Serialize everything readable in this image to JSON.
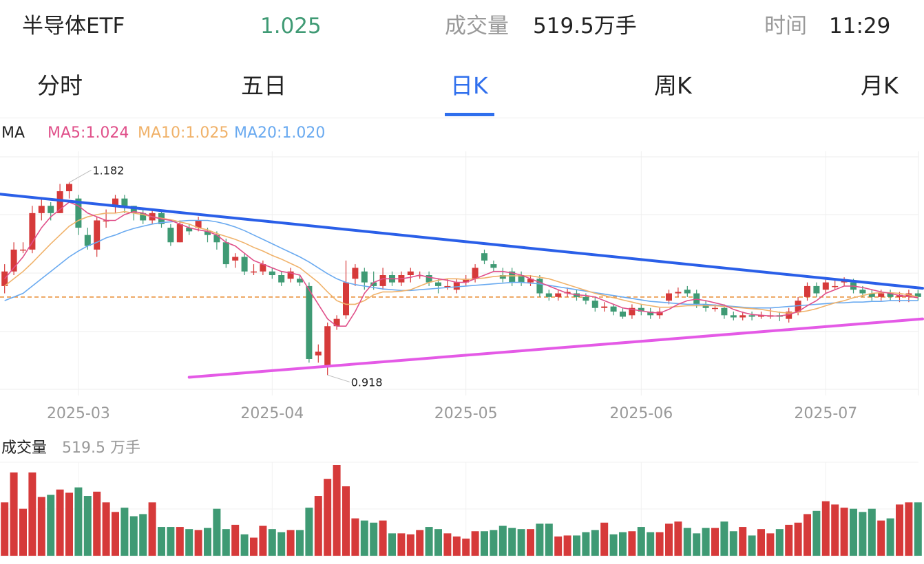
{
  "header": {
    "name": "半导体ETF",
    "price": "1.025",
    "volume_label": "成交量",
    "volume_value": "519.5万手",
    "time_label": "时间",
    "time_value": "11:29"
  },
  "tabs": [
    {
      "label": "分时",
      "active": false
    },
    {
      "label": "五日",
      "active": false
    },
    {
      "label": "日K",
      "active": true
    },
    {
      "label": "周K",
      "active": false
    },
    {
      "label": "月K",
      "active": false
    }
  ],
  "ma_legend": {
    "label": "MA",
    "ma5": "MA5:1.024",
    "ma10": "MA10:1.025",
    "ma20": "MA20:1.020"
  },
  "volume_legend": {
    "label": "成交量",
    "value": "519.5 万手"
  },
  "colors": {
    "up": "#d63a3a",
    "down": "#3f9a74",
    "ma5": "#e0508a",
    "ma10": "#f0b26a",
    "ma20": "#6aaaf0",
    "resistance_line": "#2a5fe8",
    "support_line": "#e45ae6",
    "price_ref_line": "#e8872a",
    "accent": "#2f6fed"
  },
  "chart_data": {
    "type": "candlestick",
    "x_tick_labels": [
      "2025-03",
      "2025-04",
      "2025-05",
      "2025-06",
      "2025-07"
    ],
    "x_tick_index": [
      8,
      29,
      50,
      69,
      89
    ],
    "y_range": [
      0.89,
      1.22
    ],
    "price_reference": 1.025,
    "annotations": [
      {
        "text": "1.182",
        "index": 7,
        "value": 1.182
      },
      {
        "text": "0.918",
        "index": 35,
        "value": 0.918
      }
    ],
    "trendlines": [
      {
        "name": "resistance",
        "from": [
          -0.5,
          1.166
        ],
        "to": [
          99.5,
          1.037
        ]
      },
      {
        "name": "support",
        "from": [
          20,
          0.915
        ],
        "to": [
          99.5,
          0.995
        ]
      }
    ],
    "candles": [
      [
        1.04,
        1.06,
        1.07,
        1.03
      ],
      [
        1.06,
        1.09,
        1.1,
        1.055
      ],
      [
        1.09,
        1.09,
        1.1,
        1.085
      ],
      [
        1.09,
        1.14,
        1.15,
        1.085
      ],
      [
        1.14,
        1.15,
        1.16,
        1.13
      ],
      [
        1.15,
        1.14,
        1.155,
        1.13
      ],
      [
        1.14,
        1.17,
        1.18,
        1.14
      ],
      [
        1.17,
        1.18,
        1.182,
        1.16
      ],
      [
        1.16,
        1.12,
        1.165,
        1.11
      ],
      [
        1.11,
        1.095,
        1.12,
        1.09
      ],
      [
        1.09,
        1.13,
        1.135,
        1.08
      ],
      [
        1.13,
        1.13,
        1.145,
        1.12
      ],
      [
        1.15,
        1.16,
        1.165,
        1.14
      ],
      [
        1.16,
        1.15,
        1.165,
        1.14
      ],
      [
        1.15,
        1.14,
        1.15,
        1.13
      ],
      [
        1.14,
        1.13,
        1.145,
        1.125
      ],
      [
        1.13,
        1.14,
        1.145,
        1.125
      ],
      [
        1.14,
        1.125,
        1.145,
        1.12
      ],
      [
        1.12,
        1.1,
        1.125,
        1.095
      ],
      [
        1.1,
        1.125,
        1.13,
        1.1
      ],
      [
        1.12,
        1.115,
        1.125,
        1.11
      ],
      [
        1.12,
        1.13,
        1.135,
        1.115
      ],
      [
        1.115,
        1.11,
        1.12,
        1.1
      ],
      [
        1.11,
        1.1,
        1.115,
        1.09
      ],
      [
        1.1,
        1.07,
        1.105,
        1.065
      ],
      [
        1.075,
        1.08,
        1.085,
        1.065
      ],
      [
        1.08,
        1.06,
        1.085,
        1.055
      ],
      [
        1.06,
        1.06,
        1.07,
        1.055
      ],
      [
        1.06,
        1.07,
        1.075,
        1.055
      ],
      [
        1.06,
        1.055,
        1.065,
        1.05
      ],
      [
        1.055,
        1.045,
        1.06,
        1.04
      ],
      [
        1.05,
        1.06,
        1.065,
        1.045
      ],
      [
        1.05,
        1.045,
        1.055,
        1.04
      ],
      [
        1.04,
        0.94,
        1.045,
        0.935
      ],
      [
        0.945,
        0.95,
        0.96,
        0.935
      ],
      [
        0.93,
        0.985,
        0.99,
        0.918
      ],
      [
        0.985,
        0.995,
        1.0,
        0.98
      ],
      [
        1.0,
        1.045,
        1.075,
        0.995
      ],
      [
        1.05,
        1.065,
        1.07,
        1.04
      ],
      [
        1.06,
        1.045,
        1.065,
        1.035
      ],
      [
        1.045,
        1.04,
        1.06,
        1.035
      ],
      [
        1.04,
        1.055,
        1.065,
        1.035
      ],
      [
        1.055,
        1.045,
        1.06,
        1.04
      ],
      [
        1.045,
        1.055,
        1.06,
        1.04
      ],
      [
        1.055,
        1.06,
        1.065,
        1.045
      ],
      [
        1.055,
        1.055,
        1.06,
        1.05
      ],
      [
        1.055,
        1.045,
        1.06,
        1.04
      ],
      [
        1.045,
        1.04,
        1.05,
        1.03
      ],
      [
        1.04,
        1.04,
        1.05,
        1.035
      ],
      [
        1.035,
        1.045,
        1.05,
        1.03
      ],
      [
        1.045,
        1.05,
        1.055,
        1.04
      ],
      [
        1.05,
        1.065,
        1.07,
        1.045
      ],
      [
        1.085,
        1.075,
        1.09,
        1.07
      ],
      [
        1.07,
        1.065,
        1.075,
        1.06
      ],
      [
        1.055,
        1.05,
        1.065,
        1.045
      ],
      [
        1.06,
        1.045,
        1.065,
        1.04
      ],
      [
        1.055,
        1.045,
        1.06,
        1.04
      ],
      [
        1.045,
        1.05,
        1.055,
        1.04
      ],
      [
        1.05,
        1.03,
        1.055,
        1.025
      ],
      [
        1.03,
        1.025,
        1.035,
        1.02
      ],
      [
        1.025,
        1.03,
        1.035,
        1.02
      ],
      [
        1.03,
        1.032,
        1.038,
        1.025
      ],
      [
        1.03,
        1.025,
        1.035,
        1.02
      ],
      [
        1.025,
        1.02,
        1.03,
        1.015
      ],
      [
        1.02,
        1.01,
        1.025,
        1.005
      ],
      [
        1.01,
        1.012,
        1.018,
        1.005
      ],
      [
        1.012,
        1.005,
        1.015,
        1.0
      ],
      [
        1.005,
        0.998,
        1.01,
        0.995
      ],
      [
        1.0,
        1.01,
        1.015,
        0.995
      ],
      [
        1.01,
        1.005,
        1.015,
        1.0
      ],
      [
        1.005,
        1.0,
        1.01,
        0.995
      ],
      [
        1.0,
        1.005,
        1.01,
        0.995
      ],
      [
        1.02,
        1.03,
        1.035,
        1.015
      ],
      [
        1.03,
        1.032,
        1.038,
        1.025
      ],
      [
        1.035,
        1.03,
        1.04,
        1.025
      ],
      [
        1.03,
        1.015,
        1.035,
        1.01
      ],
      [
        1.015,
        1.01,
        1.02,
        1.005
      ],
      [
        1.01,
        1.01,
        1.015,
        1.005
      ],
      [
        1.01,
        1.0,
        1.015,
        0.995
      ],
      [
        1.0,
        0.997,
        1.005,
        0.993
      ],
      [
        0.997,
        1.0,
        1.005,
        0.993
      ],
      [
        1.0,
        0.998,
        1.005,
        0.993
      ],
      [
        0.998,
        1.0,
        1.005,
        0.995
      ],
      [
        0.998,
        1.0,
        1.01,
        0.995
      ],
      [
        1.0,
        0.998,
        1.005,
        0.992
      ],
      [
        0.995,
        1.005,
        1.01,
        0.99
      ],
      [
        1.005,
        1.02,
        1.025,
        1.0
      ],
      [
        1.025,
        1.04,
        1.045,
        1.02
      ],
      [
        1.04,
        1.03,
        1.045,
        1.025
      ],
      [
        1.035,
        1.045,
        1.05,
        1.03
      ],
      [
        1.04,
        1.04,
        1.05,
        1.035
      ],
      [
        1.045,
        1.047,
        1.052,
        1.04
      ],
      [
        1.045,
        1.035,
        1.05,
        1.03
      ],
      [
        1.035,
        1.03,
        1.04,
        1.025
      ],
      [
        1.03,
        1.025,
        1.035,
        1.02
      ],
      [
        1.025,
        1.03,
        1.035,
        1.02
      ],
      [
        1.03,
        1.025,
        1.035,
        1.02
      ],
      [
        1.025,
        1.028,
        1.032,
        1.018
      ],
      [
        1.025,
        1.03,
        1.035,
        1.018
      ],
      [
        1.03,
        1.025,
        1.035,
        1.02
      ]
    ],
    "ma5": [
      1.05,
      1.065,
      1.08,
      1.1,
      1.12,
      1.135,
      1.145,
      1.155,
      1.15,
      1.14,
      1.135,
      1.13,
      1.13,
      1.138,
      1.142,
      1.14,
      1.135,
      1.132,
      1.13,
      1.125,
      1.12,
      1.117,
      1.115,
      1.11,
      1.1,
      1.095,
      1.085,
      1.075,
      1.07,
      1.065,
      1.06,
      1.058,
      1.055,
      1.035,
      1.015,
      0.995,
      0.985,
      0.985,
      1.005,
      1.03,
      1.045,
      1.05,
      1.05,
      1.05,
      1.052,
      1.055,
      1.052,
      1.05,
      1.048,
      1.045,
      1.045,
      1.05,
      1.055,
      1.06,
      1.06,
      1.058,
      1.055,
      1.05,
      1.045,
      1.04,
      1.035,
      1.03,
      1.028,
      1.027,
      1.025,
      1.02,
      1.015,
      1.01,
      1.008,
      1.006,
      1.004,
      1.003,
      1.008,
      1.015,
      1.02,
      1.022,
      1.02,
      1.017,
      1.014,
      1.008,
      1.004,
      1.001,
      1.0,
      0.999,
      0.999,
      1.001,
      1.005,
      1.013,
      1.02,
      1.03,
      1.035,
      1.04,
      1.04,
      1.038,
      1.035,
      1.032,
      1.03,
      1.027,
      1.026,
      1.024
    ],
    "ma10": [
      1.04,
      1.05,
      1.06,
      1.072,
      1.085,
      1.098,
      1.11,
      1.122,
      1.13,
      1.135,
      1.138,
      1.14,
      1.14,
      1.142,
      1.14,
      1.138,
      1.135,
      1.133,
      1.131,
      1.128,
      1.125,
      1.12,
      1.117,
      1.112,
      1.108,
      1.104,
      1.099,
      1.093,
      1.088,
      1.082,
      1.077,
      1.071,
      1.065,
      1.055,
      1.045,
      1.032,
      1.02,
      1.015,
      1.015,
      1.02,
      1.028,
      1.032,
      1.032,
      1.033,
      1.035,
      1.04,
      1.045,
      1.048,
      1.05,
      1.05,
      1.049,
      1.05,
      1.051,
      1.053,
      1.054,
      1.054,
      1.054,
      1.054,
      1.052,
      1.05,
      1.046,
      1.042,
      1.038,
      1.034,
      1.03,
      1.027,
      1.024,
      1.021,
      1.018,
      1.015,
      1.013,
      1.011,
      1.011,
      1.012,
      1.013,
      1.013,
      1.013,
      1.013,
      1.012,
      1.011,
      1.01,
      1.009,
      1.008,
      1.006,
      1.004,
      1.003,
      1.004,
      1.006,
      1.009,
      1.013,
      1.017,
      1.02,
      1.024,
      1.027,
      1.03,
      1.031,
      1.031,
      1.03,
      1.028,
      1.025
    ],
    "ma20": [
      1.02,
      1.025,
      1.03,
      1.04,
      1.05,
      1.06,
      1.07,
      1.08,
      1.088,
      1.095,
      1.1,
      1.106,
      1.11,
      1.115,
      1.119,
      1.122,
      1.125,
      1.127,
      1.128,
      1.129,
      1.13,
      1.13,
      1.13,
      1.128,
      1.125,
      1.121,
      1.116,
      1.11,
      1.104,
      1.098,
      1.092,
      1.086,
      1.08,
      1.073,
      1.065,
      1.057,
      1.05,
      1.045,
      1.042,
      1.04,
      1.038,
      1.036,
      1.035,
      1.034,
      1.034,
      1.035,
      1.036,
      1.037,
      1.038,
      1.039,
      1.04,
      1.041,
      1.042,
      1.043,
      1.044,
      1.045,
      1.045,
      1.044,
      1.043,
      1.041,
      1.039,
      1.037,
      1.035,
      1.033,
      1.031,
      1.029,
      1.027,
      1.025,
      1.023,
      1.021,
      1.019,
      1.018,
      1.017,
      1.016,
      1.015,
      1.015,
      1.015,
      1.014,
      1.013,
      1.012,
      1.011,
      1.01,
      1.01,
      1.01,
      1.011,
      1.012,
      1.013,
      1.014,
      1.015,
      1.016,
      1.017,
      1.017,
      1.018,
      1.018,
      1.019,
      1.019,
      1.02,
      1.02,
      1.02,
      1.02
    ],
    "volume": [
      50,
      78,
      44,
      78,
      55,
      57,
      62,
      59,
      64,
      56,
      60,
      50,
      41,
      45,
      37,
      39,
      50,
      27,
      27,
      27,
      25,
      24,
      26,
      44,
      25,
      29,
      20,
      17,
      28,
      25,
      22,
      24,
      24,
      45,
      56,
      72,
      85,
      65,
      35,
      33,
      31,
      33,
      21,
      21,
      20,
      24,
      27,
      25,
      21,
      18,
      16,
      23,
      23,
      24,
      28,
      26,
      25,
      25,
      30,
      30,
      18,
      19,
      19,
      22,
      24,
      31,
      20,
      22,
      23,
      27,
      22,
      22,
      30,
      32,
      26,
      21,
      26,
      26,
      32,
      23,
      27,
      19,
      25,
      21,
      25,
      29,
      31,
      39,
      42,
      51,
      48,
      45,
      44,
      41,
      44,
      33,
      35,
      48,
      50,
      50
    ]
  }
}
